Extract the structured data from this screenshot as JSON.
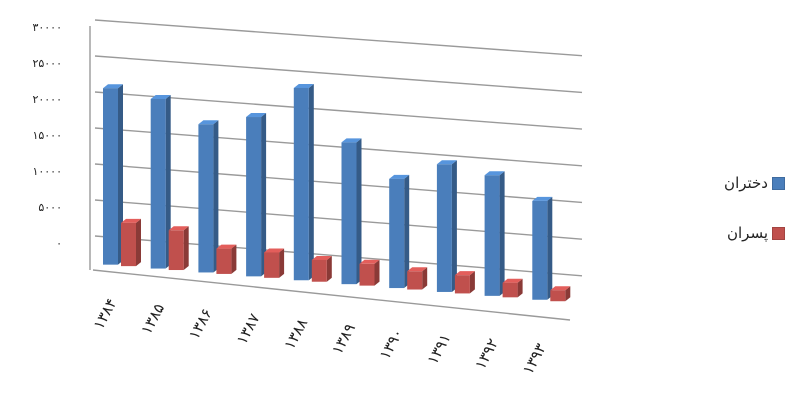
{
  "chart_data": {
    "type": "bar",
    "categories": [
      "۱۳۸۴",
      "۱۳۸۵",
      "۱۳۸۶",
      "۱۳۸۷",
      "۱۳۸۸",
      "۱۳۸۹",
      "۱۳۹۰",
      "۱۳۹۱",
      "۱۳۹۲",
      "۱۳۹۳"
    ],
    "series": [
      {
        "name": "دختران",
        "color": "#4a7ebb",
        "values": [
          24500,
          23500,
          20500,
          22000,
          26500,
          19500,
          15000,
          17500,
          16500,
          13500
        ]
      },
      {
        "name": "پسران",
        "color": "#c0504d",
        "values": [
          6000,
          5500,
          3500,
          3500,
          3000,
          3000,
          2500,
          2500,
          2000,
          1500
        ]
      }
    ],
    "yticks": [
      "۰",
      "۵۰۰۰",
      "۱۰۰۰۰",
      "۱۵۰۰۰",
      "۲۰۰۰۰",
      "۲۵۰۰۰",
      "۳۰۰۰۰"
    ],
    "ylim": [
      0,
      30000
    ],
    "grid": true,
    "legend_position": "right",
    "title": "",
    "xlabel": "",
    "ylabel": ""
  }
}
